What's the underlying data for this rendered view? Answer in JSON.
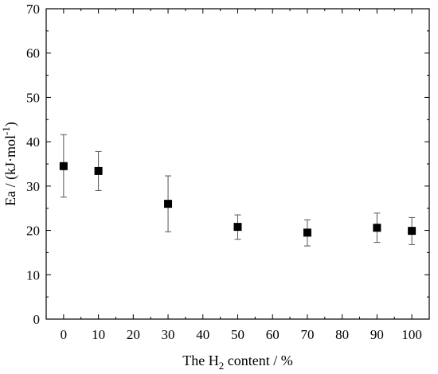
{
  "chart_data": {
    "type": "scatter",
    "title": "",
    "xlabel": {
      "prefix": "The H",
      "subscript": "2",
      "suffix": " content / %"
    },
    "ylabel": {
      "prefix": "Ea / (kJ·mol",
      "superscript": "-1",
      "suffix": ")"
    },
    "xlim": [
      -5,
      105
    ],
    "ylim": [
      0,
      70
    ],
    "x_ticks": [
      0,
      10,
      20,
      30,
      40,
      50,
      60,
      70,
      80,
      90,
      100
    ],
    "y_ticks": [
      0,
      10,
      20,
      30,
      40,
      50,
      60,
      70
    ],
    "marker": "square",
    "marker_color": "#000000",
    "grid": false,
    "legend": "none",
    "series": [
      {
        "x": [
          0,
          10,
          30,
          50,
          70,
          90,
          100
        ],
        "y": [
          34.5,
          33.4,
          26.0,
          20.8,
          19.5,
          20.6,
          19.9
        ],
        "error_low": [
          27.5,
          29.0,
          19.7,
          18.0,
          16.5,
          17.3,
          16.8
        ],
        "error_high": [
          41.6,
          37.8,
          32.3,
          23.5,
          22.4,
          23.9,
          22.9
        ]
      }
    ]
  }
}
